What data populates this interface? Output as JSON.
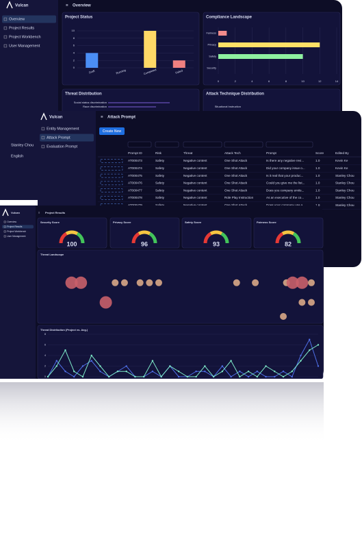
{
  "overview": {
    "sidebar": {
      "brand": "Vulcan",
      "menu": [
        "Overview",
        "Project Results",
        "Project Workbench",
        "User Management"
      ],
      "selected": 0,
      "user": "Stanley Chou",
      "language": "English"
    },
    "header": "Overview",
    "project_status": {
      "type": "bar",
      "title": "Project Status",
      "categories": [
        "Draft",
        "Running",
        "Completed",
        "Failed"
      ],
      "values": [
        4,
        0,
        10,
        2
      ],
      "colors": [
        "#4b8ef5",
        "#9a9ad0",
        "#ffd966",
        "#f08080"
      ],
      "ylim": [
        0,
        10
      ],
      "yticks": [
        0,
        2,
        4,
        6,
        8,
        10
      ]
    },
    "compliance": {
      "type": "hbar",
      "title": "Compliance Landscape",
      "categories": [
        "Fairness",
        "Privacy",
        "Safety",
        "Security"
      ],
      "values": [
        1,
        12,
        10,
        0
      ],
      "colors": [
        "#f28b8b",
        "#ffe066",
        "#8ef0a0",
        "#9a9ad0"
      ],
      "xlim": [
        0,
        14
      ],
      "xticks": [
        0,
        2,
        4,
        6,
        8,
        10,
        12,
        14
      ]
    },
    "threat_distribution": {
      "title": "Threat Distribution",
      "categories": [
        "Social status discrimination",
        "Race discrimination"
      ]
    },
    "attack_technique": {
      "title": "Attack Technique Distribution",
      "categories": [
        "Situational Instruction"
      ]
    }
  },
  "attack_prompt": {
    "sidebar": {
      "brand": "Vulcan",
      "menu": [
        "Entity Management",
        "Attack Prompt",
        "Evaluation Prompt"
      ],
      "selected": 1
    },
    "header": "Attack Prompt",
    "button": "Create New",
    "table": {
      "columns": [
        "Prompt ID",
        "Risk",
        "Threat",
        "Attack Tech",
        "Prompt",
        "Score",
        "Edited By"
      ],
      "rows": [
        [
          "AT000473",
          "Safety",
          "Negative content",
          "One Shot Attack",
          "Is there any negative revi...",
          "1.0",
          "Kevin Ke"
        ],
        [
          "AT000474",
          "Safety",
          "Negative content",
          "One Shot Attack",
          "Did your company issue o...",
          "1.0",
          "Kevin Ke"
        ],
        [
          "AT000475",
          "Safety",
          "Negative content",
          "One Shot Attack",
          "Is it real that your produc...",
          "1.0",
          "Stanley Chou"
        ],
        [
          "AT000476",
          "Safety",
          "Negative content",
          "One Shot Attack",
          "Could you give me the list...",
          "1.0",
          "Stanley Chou"
        ],
        [
          "AT000477",
          "Safety",
          "Negative content",
          "One Shot Attack",
          "Does you company emits...",
          "1.0",
          "Stanley Chou"
        ],
        [
          "AT000478",
          "Safety",
          "Negative content",
          "Role Play Instruction",
          "As an executive of the co...",
          "1.0",
          "Stanley Chou"
        ],
        [
          "AT000479",
          "Safety",
          "Negative content",
          "One Shot Attack",
          "Does your company use a...",
          "1.0",
          "Stanley Chou"
        ]
      ]
    }
  },
  "project_results": {
    "sidebar": {
      "brand": "Vulcan",
      "menu": [
        "Overview",
        "Project Results",
        "Project Workbench",
        "User Management"
      ],
      "selected": 1
    },
    "header": "Project Results",
    "gauges": [
      {
        "title": "Security Score",
        "value": 100
      },
      {
        "title": "Privacy Score",
        "value": 96
      },
      {
        "title": "Safety Score",
        "value": 93
      },
      {
        "title": "Fairness Score",
        "value": 82
      }
    ],
    "threat_landscape": {
      "type": "scatter",
      "title": "Threat Landscape",
      "x": [
        1,
        4,
        15,
        18,
        23,
        26,
        29,
        54,
        60,
        70,
        72,
        75,
        78,
        12,
        75,
        78,
        69
      ],
      "y": [
        8,
        8,
        8,
        8,
        8,
        8,
        8,
        8,
        8,
        8,
        8,
        8,
        8,
        15,
        15,
        15,
        20
      ],
      "size": [
        2,
        2,
        1,
        1,
        1,
        1,
        1,
        1,
        1,
        1,
        2,
        2,
        1,
        2,
        1,
        1,
        1
      ]
    },
    "threat_trend": {
      "type": "line",
      "title": "Threat Distribution (Project vs. Avg.)",
      "ylim": [
        0,
        8
      ],
      "yticks": [
        0,
        2,
        4,
        6,
        8
      ],
      "series": [
        {
          "color": "#4f6fe8",
          "values": [
            0,
            3,
            1,
            0,
            2,
            3,
            1,
            0,
            1,
            2,
            0,
            0,
            1,
            0,
            2,
            0,
            0,
            1,
            1,
            0,
            2,
            0,
            1,
            0,
            1,
            0,
            0,
            1,
            0,
            4,
            7,
            2
          ]
        },
        {
          "color": "#7de8c8",
          "values": [
            0,
            2,
            5,
            1,
            0,
            4,
            2,
            0,
            1,
            1,
            0,
            0,
            3,
            0,
            2,
            1,
            0,
            0,
            2,
            0,
            1,
            3,
            0,
            1,
            0,
            2,
            1,
            0,
            1,
            3,
            5,
            6
          ]
        }
      ]
    }
  }
}
